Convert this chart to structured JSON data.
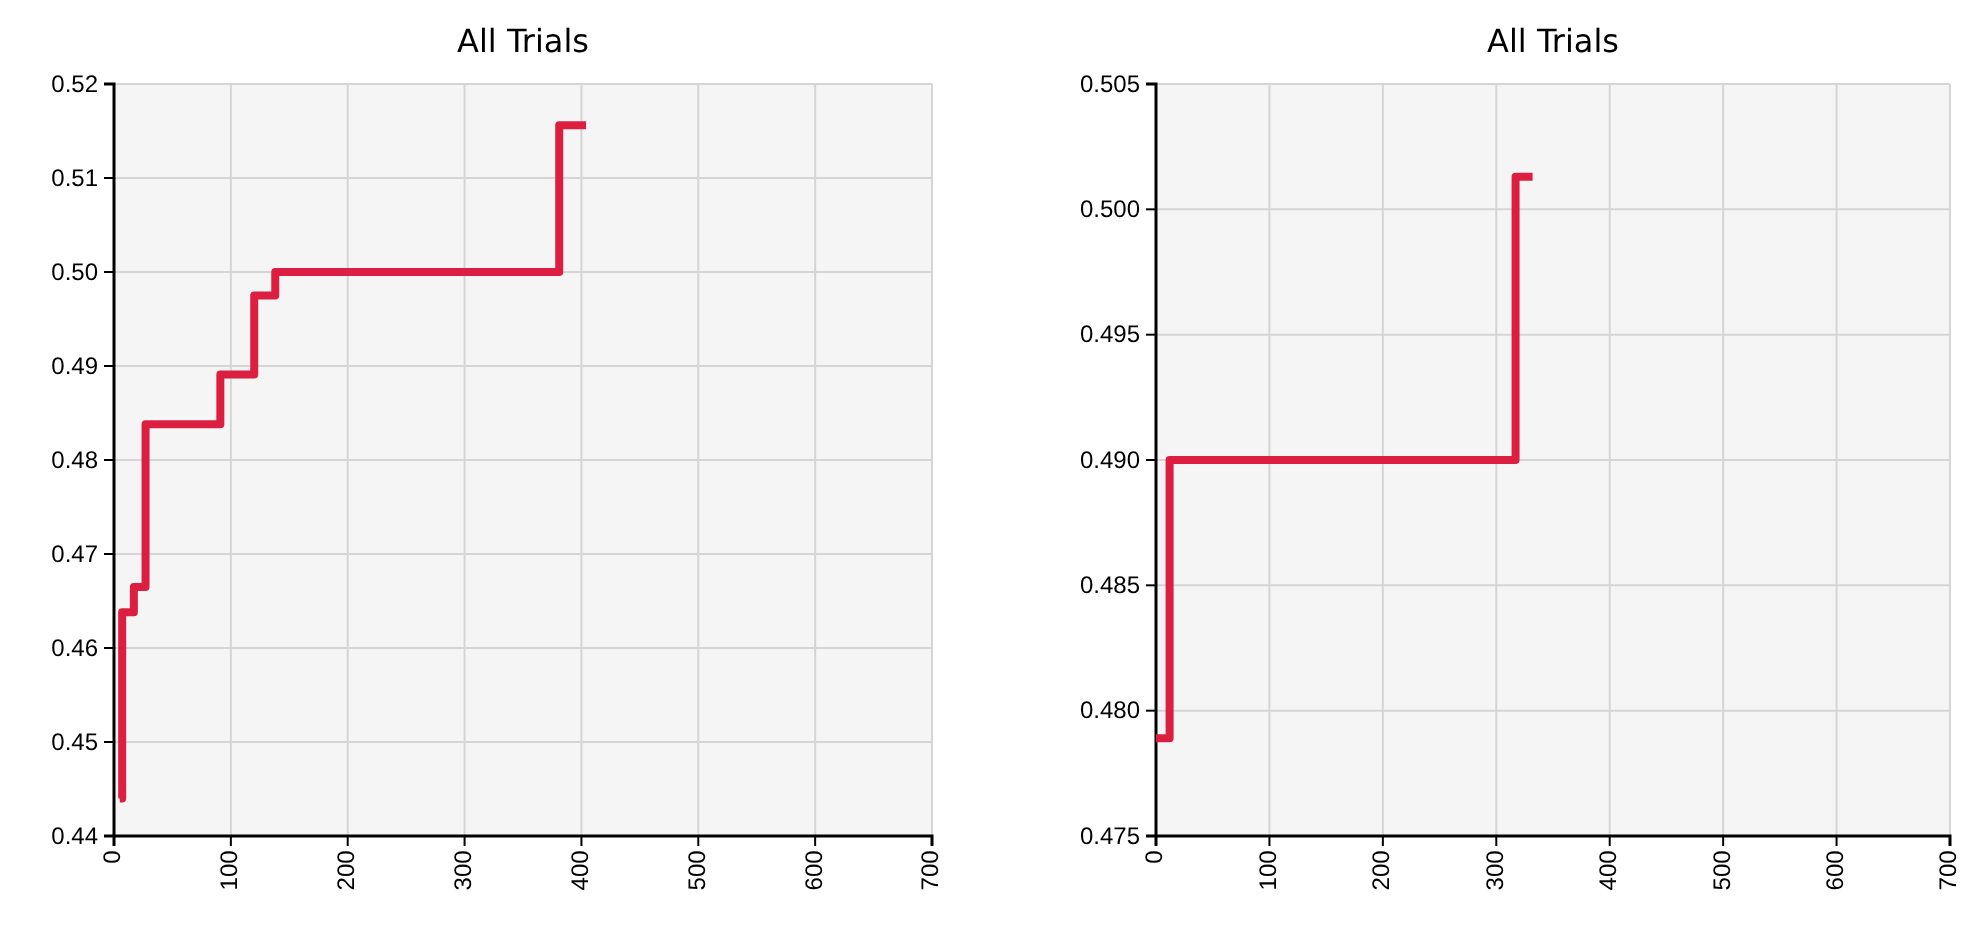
{
  "chart_data": [
    {
      "type": "step",
      "title": "All Trials",
      "x": [
        5,
        7,
        17,
        27,
        91,
        120,
        138,
        381,
        404
      ],
      "series": [
        {
          "color": "#dc1e40",
          "values": [
            0.444,
            0.4638,
            0.4665,
            0.4838,
            0.4891,
            0.4975,
            0.5,
            0.5156,
            0.5156
          ]
        }
      ],
      "xlim": [
        0,
        700
      ],
      "xticks": [
        0,
        100,
        200,
        300,
        400,
        500,
        600,
        700
      ],
      "ylim": [
        0.44,
        0.52
      ],
      "yticks": [
        {
          "value": 0.44,
          "label": "0.44"
        },
        {
          "value": 0.45,
          "label": "0.45"
        },
        {
          "value": 0.46,
          "label": "0.46"
        },
        {
          "value": 0.47,
          "label": "0.47"
        },
        {
          "value": 0.48,
          "label": "0.48"
        },
        {
          "value": 0.49,
          "label": "0.49"
        },
        {
          "value": 0.5,
          "label": "0.50"
        },
        {
          "value": 0.51,
          "label": "0.51"
        },
        {
          "value": 0.52,
          "label": "0.52"
        }
      ],
      "grid": true
    },
    {
      "type": "step",
      "title": "All Trials",
      "x": [
        0,
        12,
        317,
        332
      ],
      "series": [
        {
          "color": "#dc1e40",
          "values": [
            0.4789,
            0.49,
            0.5013,
            0.5013
          ]
        }
      ],
      "xlim": [
        0,
        700
      ],
      "xticks": [
        0,
        100,
        200,
        300,
        400,
        500,
        600,
        700
      ],
      "ylim": [
        0.475,
        0.505
      ],
      "yticks": [
        0.475,
        {
          "value": 0.48,
          "label": "0.480"
        },
        0.485,
        {
          "value": 0.49,
          "label": "0.490"
        },
        0.495,
        {
          "value": 0.5,
          "label": "0.500"
        },
        0.505
      ],
      "grid": true
    }
  ]
}
